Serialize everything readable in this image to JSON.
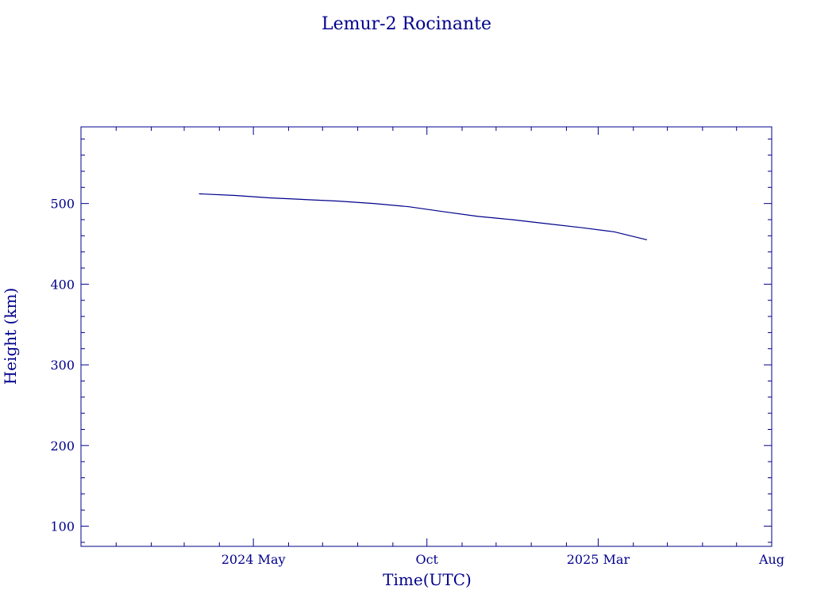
{
  "chart_data": {
    "type": "line",
    "title": "Lemur-2 Rocinante",
    "xlabel": "Time(UTC)",
    "ylabel": "Height (km)",
    "color": "#00008b",
    "xlim": [
      "2023-12-01",
      "2025-08-01"
    ],
    "ylim": [
      75,
      595
    ],
    "x_ticks": [
      {
        "date": "2024-05-01",
        "label": "2024 May"
      },
      {
        "date": "2024-10-01",
        "label": "Oct"
      },
      {
        "date": "2025-03-01",
        "label": "2025 Mar"
      },
      {
        "date": "2025-08-01",
        "label": "Aug"
      }
    ],
    "y_ticks": [
      100,
      200,
      300,
      400,
      500
    ],
    "grid": false,
    "series": [
      {
        "x": [
          "2024-03-14",
          "2024-04-15",
          "2024-05-15",
          "2024-06-15",
          "2024-07-15",
          "2024-08-15",
          "2024-09-15",
          "2024-10-15",
          "2024-11-15",
          "2024-12-15",
          "2025-01-15",
          "2025-02-15",
          "2025-03-15",
          "2025-04-13"
        ],
        "y": [
          512,
          510,
          507,
          505,
          503,
          500,
          496,
          490,
          484,
          480,
          475,
          470,
          465,
          455
        ]
      }
    ]
  }
}
